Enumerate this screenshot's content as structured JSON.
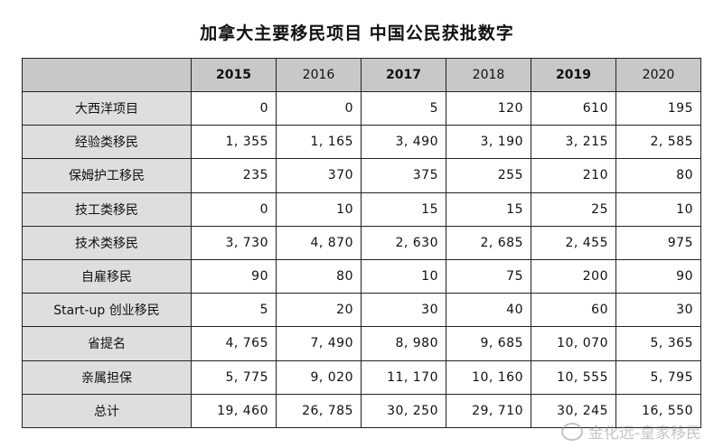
{
  "title": "加拿大主要移民项目 中国公民获批数字",
  "header": {
    "corner": "",
    "years": [
      "2015",
      "2016",
      "2017",
      "2018",
      "2019",
      "2020"
    ],
    "bold": [
      true,
      false,
      true,
      false,
      true,
      false
    ]
  },
  "rows": [
    {
      "label": "大西洋项目",
      "values": [
        "0",
        "0",
        "5",
        "120",
        "610",
        "195"
      ]
    },
    {
      "label": "经验类移民",
      "values": [
        "1, 355",
        "1, 165",
        "3, 490",
        "3, 190",
        "3, 215",
        "2, 585"
      ]
    },
    {
      "label": "保姆护工移民",
      "values": [
        "235",
        "370",
        "375",
        "255",
        "210",
        "80"
      ]
    },
    {
      "label": "技工类移民",
      "values": [
        "0",
        "10",
        "15",
        "15",
        "25",
        "10"
      ]
    },
    {
      "label": "技术类移民",
      "values": [
        "3, 730",
        "4, 870",
        "2, 630",
        "2, 685",
        "2, 455",
        "975"
      ]
    },
    {
      "label": "自雇移民",
      "values": [
        "90",
        "80",
        "10",
        "75",
        "200",
        "90"
      ]
    },
    {
      "label": "Start-up 创业移民",
      "values": [
        "5",
        "20",
        "30",
        "40",
        "60",
        "30"
      ]
    },
    {
      "label": "省提名",
      "values": [
        "4, 765",
        "7, 490",
        "8, 980",
        "9, 685",
        "10, 070",
        "5, 365"
      ]
    },
    {
      "label": "亲属担保",
      "values": [
        "5, 775",
        "9, 020",
        "11, 170",
        "10, 160",
        "10, 555",
        "5, 795"
      ]
    },
    {
      "label": "总计",
      "values": [
        "19, 460",
        "26, 785",
        "30, 250",
        "29, 710",
        "30, 245",
        "16, 550"
      ]
    }
  ],
  "watermark": "金化远-皇家移民"
}
